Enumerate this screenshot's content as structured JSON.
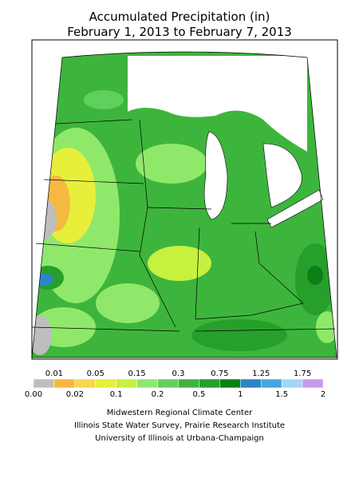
{
  "title": [
    "Accumulated Precipitation (in)",
    "February 1, 2013 to February 7, 2013"
  ],
  "legend": {
    "labels": [
      "0.00",
      "0.01",
      "0.02",
      "0.05",
      "0.1",
      "0.15",
      "0.2",
      "0.3",
      "0.5",
      "0.75",
      "1",
      "1.25",
      "1.5",
      "1.75",
      "2"
    ],
    "colors": [
      "#bebebe",
      "#f5b942",
      "#f7d84a",
      "#e8ef3a",
      "#c8f03e",
      "#90e86a",
      "#60d05c",
      "#3db53c",
      "#26a02a",
      "#0d7f17",
      "#2c86c6",
      "#40a8e0",
      "#a3d6f5",
      "#c998e8"
    ]
  },
  "credits": [
    "Midwestern Regional Climate Center",
    "Illinois State Water Survey, Prairie Research Institute",
    "University of Illinois at Urbana-Champaign"
  ]
}
